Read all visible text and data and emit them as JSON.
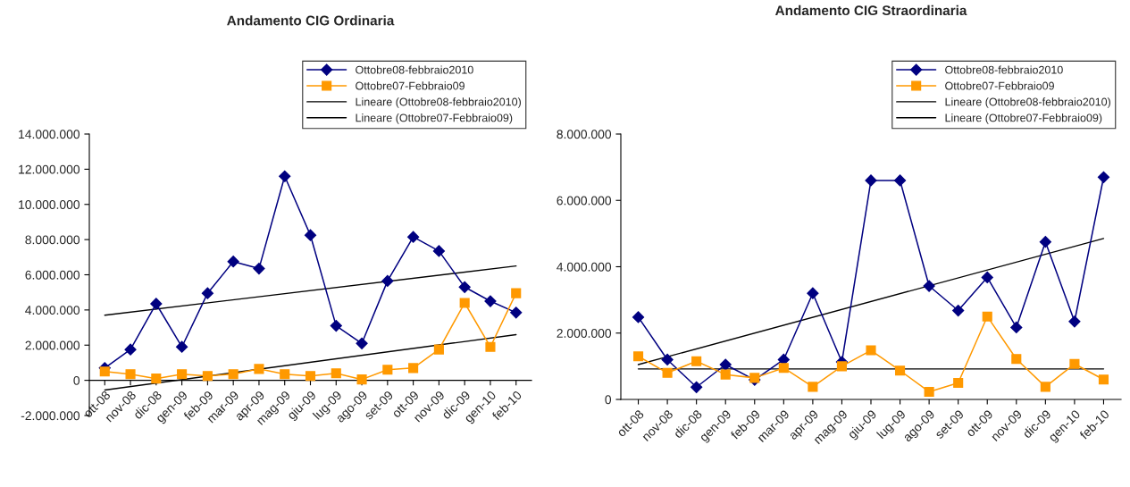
{
  "chart_data": [
    {
      "type": "line",
      "title": "Andamento CIG Ordinaria",
      "categories": [
        "ott-08",
        "nov-08",
        "dic-08",
        "gen-09",
        "feb-09",
        "mar-09",
        "apr-09",
        "mag-09",
        "giu-09",
        "lug-09",
        "ago-09",
        "set-09",
        "ott-09",
        "nov-09",
        "dic-09",
        "gen-10",
        "feb-10"
      ],
      "series": [
        {
          "name": "Ottobre08-febbraio2010",
          "color": "#000080",
          "marker": "diamond",
          "values": [
            700000,
            1750000,
            4350000,
            1900000,
            4950000,
            6750000,
            6350000,
            11600000,
            8250000,
            3100000,
            2100000,
            5650000,
            8150000,
            7350000,
            5300000,
            4500000,
            3850000
          ]
        },
        {
          "name": "Ottobre07-Febbraio09",
          "color": "#ff9900",
          "marker": "square",
          "values": [
            500000,
            350000,
            100000,
            350000,
            250000,
            350000,
            650000,
            350000,
            250000,
            400000,
            50000,
            600000,
            700000,
            1750000,
            4400000,
            1900000,
            4950000
          ]
        },
        {
          "name": "Lineare (Ottobre08-febbraio2010)",
          "color": "#000000",
          "type": "line",
          "marker": "none",
          "x": [
            "ott-08",
            "feb-10"
          ],
          "values": [
            3700000,
            6500000
          ]
        },
        {
          "name": "Lineare (Ottobre07-Febbraio09)",
          "color": "#000000",
          "type": "line",
          "marker": "none",
          "x": [
            "ott-08",
            "feb-10"
          ],
          "values": [
            -550000,
            2600000
          ]
        }
      ],
      "ylim": [
        -2000000,
        14000000
      ],
      "yticks": [
        {
          "value": -2000000,
          "label": "-2.000.000"
        },
        {
          "value": 0,
          "label": "0"
        },
        {
          "value": 2000000,
          "label": "2.000.000"
        },
        {
          "value": 4000000,
          "label": "4.000.000"
        },
        {
          "value": 6000000,
          "label": "6.000.000"
        },
        {
          "value": 8000000,
          "label": "8.000.000"
        },
        {
          "value": 10000000,
          "label": "10.000.000"
        },
        {
          "value": 12000000,
          "label": "12.000.000"
        },
        {
          "value": 14000000,
          "label": "14.000.000"
        }
      ],
      "legend": "top right",
      "grid": false
    },
    {
      "type": "line",
      "title": "Andamento CIG Straordinaria",
      "categories": [
        "ott-08",
        "nov-08",
        "dic-08",
        "gen-09",
        "feb-09",
        "mar-09",
        "apr-09",
        "mag-09",
        "giu-09",
        "lug-09",
        "ago-09",
        "set-09",
        "ott-09",
        "nov-09",
        "dic-09",
        "gen-10",
        "feb-10"
      ],
      "series": [
        {
          "name": "Ottobre08-febbraio2010",
          "color": "#000080",
          "marker": "diamond",
          "values": [
            2480000,
            1200000,
            370000,
            1050000,
            590000,
            1200000,
            3200000,
            1130000,
            6600000,
            6600000,
            3420000,
            2680000,
            3680000,
            2170000,
            4750000,
            2350000,
            6700000
          ]
        },
        {
          "name": "Ottobre07-Febbraio09",
          "color": "#ff9900",
          "marker": "square",
          "values": [
            1300000,
            800000,
            1150000,
            750000,
            650000,
            950000,
            380000,
            1000000,
            1480000,
            870000,
            230000,
            500000,
            2500000,
            1220000,
            380000,
            1070000,
            600000
          ]
        },
        {
          "name": "Lineare (Ottobre08-febbraio2010)",
          "color": "#000000",
          "type": "line",
          "marker": "none",
          "x": [
            "ott-08",
            "feb-10"
          ],
          "values": [
            1050000,
            4850000
          ]
        },
        {
          "name": "Lineare (Ottobre07-Febbraio09)",
          "color": "#000000",
          "type": "line",
          "marker": "none",
          "x": [
            "ott-08",
            "feb-10"
          ],
          "values": [
            920000,
            920000
          ]
        }
      ],
      "ylim": [
        0,
        8000000
      ],
      "yticks": [
        {
          "value": 0,
          "label": "0"
        },
        {
          "value": 2000000,
          "label": "2.000.000"
        },
        {
          "value": 4000000,
          "label": "4.000.000"
        },
        {
          "value": 6000000,
          "label": "6.000.000"
        },
        {
          "value": 8000000,
          "label": "8.000.000"
        }
      ],
      "legend": "top right",
      "grid": false
    }
  ]
}
